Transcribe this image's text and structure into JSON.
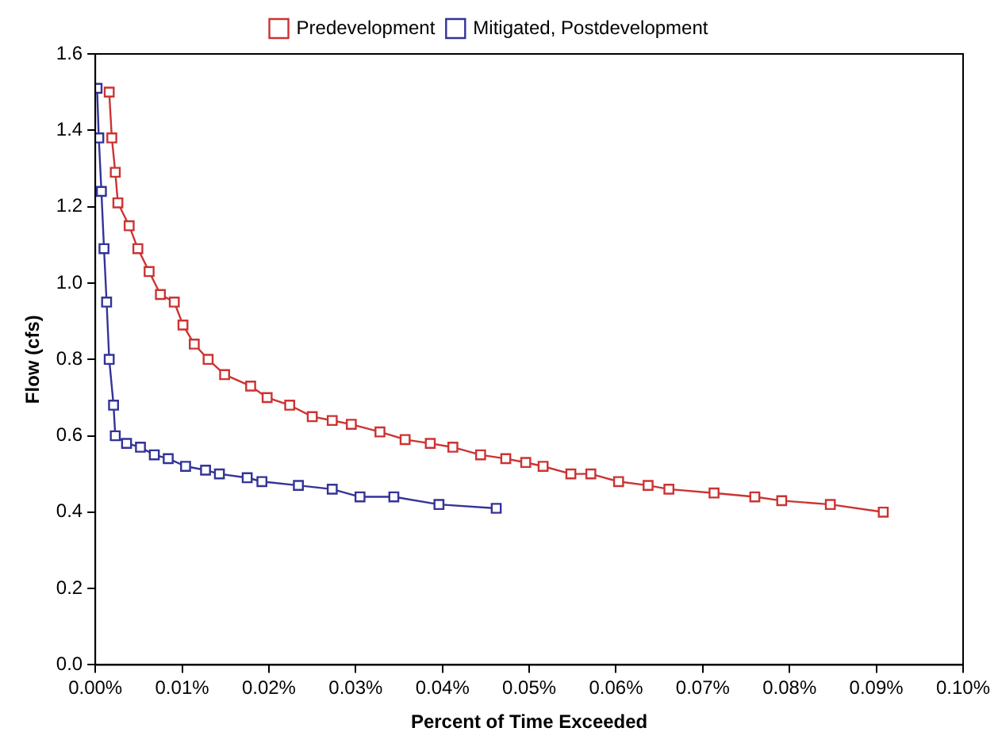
{
  "chart_data": {
    "type": "line",
    "xlabel": "Percent of Time Exceeded",
    "ylabel": "Flow (cfs)",
    "xlim": [
      0,
      0.1
    ],
    "xticks": [
      {
        "value": 0,
        "label": "0.00%"
      },
      {
        "value": 0.01,
        "label": "0.01%"
      },
      {
        "value": 0.02,
        "label": "0.02%"
      },
      {
        "value": 0.03,
        "label": "0.03%"
      },
      {
        "value": 0.04,
        "label": "0.04%"
      },
      {
        "value": 0.05,
        "label": "0.05%"
      },
      {
        "value": 0.06,
        "label": "0.06%"
      },
      {
        "value": 0.07,
        "label": "0.07%"
      },
      {
        "value": 0.08,
        "label": "0.08%"
      },
      {
        "value": 0.09,
        "label": "0.09%"
      },
      {
        "value": 0.1,
        "label": "0.10%"
      }
    ],
    "ylim": [
      0,
      1.6
    ],
    "yticks": [
      {
        "value": 0,
        "label": "0.0"
      },
      0.2,
      0.4,
      0.6,
      0.8,
      {
        "value": 1,
        "label": "1.0"
      },
      1.2,
      1.4,
      1.6
    ],
    "grid": false,
    "legend": "top",
    "marker": "square",
    "line_style": "solid",
    "series": [
      {
        "name": "Predevelopment",
        "color": "#cc3333",
        "x": [
          0.0016,
          0.0019,
          0.0023,
          0.0026,
          0.0039,
          0.0049,
          0.0062,
          0.0075,
          0.0091,
          0.0101,
          0.0114,
          0.013,
          0.0149,
          0.0179,
          0.0198,
          0.0224,
          0.025,
          0.0273,
          0.0295,
          0.0328,
          0.0357,
          0.0386,
          0.0412,
          0.0444,
          0.0473,
          0.0496,
          0.0516,
          0.0548,
          0.0571,
          0.0603,
          0.0637,
          0.0661,
          0.0713,
          0.076,
          0.0791,
          0.0847,
          0.0908
        ],
        "values": [
          1.5,
          1.38,
          1.29,
          1.21,
          1.15,
          1.09,
          1.03,
          0.97,
          0.95,
          0.89,
          0.84,
          0.8,
          0.76,
          0.73,
          0.7,
          0.68,
          0.65,
          0.64,
          0.63,
          0.61,
          0.59,
          0.58,
          0.57,
          0.55,
          0.54,
          0.53,
          0.52,
          0.5,
          0.5,
          0.48,
          0.47,
          0.46,
          0.45,
          0.44,
          0.43,
          0.42,
          0.4
        ]
      },
      {
        "name": "Mitigated, Postdevelopment",
        "color": "#333399",
        "x": [
          0.0002,
          0.0004,
          0.0007,
          0.001,
          0.0013,
          0.0016,
          0.0021,
          0.0023,
          0.0036,
          0.0052,
          0.0068,
          0.0084,
          0.0104,
          0.0127,
          0.0143,
          0.0175,
          0.0192,
          0.0234,
          0.0273,
          0.0305,
          0.0344,
          0.0396,
          0.0462
        ],
        "values": [
          1.51,
          1.38,
          1.24,
          1.09,
          0.95,
          0.8,
          0.68,
          0.6,
          0.58,
          0.57,
          0.55,
          0.54,
          0.52,
          0.51,
          0.5,
          0.49,
          0.48,
          0.47,
          0.46,
          0.44,
          0.44,
          0.42,
          0.41
        ]
      }
    ]
  }
}
